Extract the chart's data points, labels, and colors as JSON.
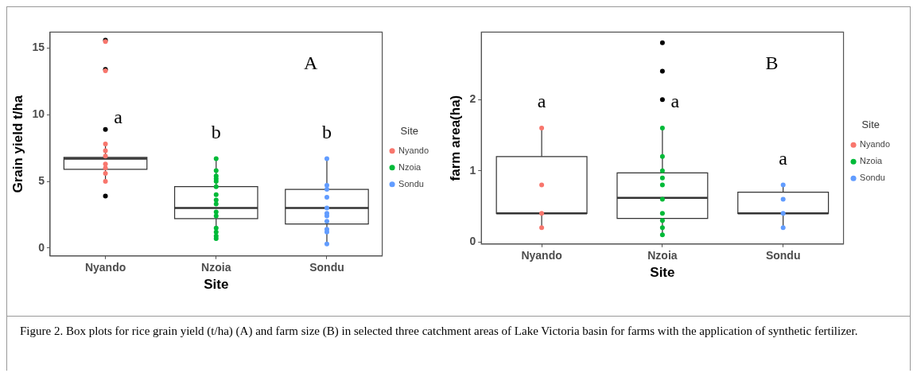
{
  "chart_data": [
    {
      "type": "box",
      "categories": [
        "Nyando",
        "Nzoia",
        "Sondu"
      ],
      "xlabel": "Site",
      "ylabel": "Grain yield t/ha",
      "legend_title": "Site",
      "legend": "right",
      "ylim": [
        -0.6,
        16.2
      ],
      "yticks": [
        0,
        5,
        10,
        15
      ],
      "boxes": [
        {
          "low": 5.0,
          "q1": 5.9,
          "median": 6.7,
          "q3": 6.8,
          "high": 7.8,
          "outliers": [
            15.6,
            13.4,
            8.9,
            3.9
          ]
        },
        {
          "low": 0.75,
          "q1": 2.2,
          "median": 3.0,
          "q3": 4.6,
          "high": 6.7
        },
        {
          "low": 0.25,
          "q1": 1.8,
          "median": 3.0,
          "q3": 4.4,
          "high": 6.7
        }
      ],
      "series": [
        {
          "name": "Nyando",
          "type": "scatter",
          "color": "#f8766d",
          "x": [
            "Nyando",
            "Nyando",
            "Nyando",
            "Nyando",
            "Nyando",
            "Nyando",
            "Nyando",
            "Nyando",
            "Nyando"
          ],
          "values": [
            15.5,
            13.3,
            7.8,
            7.3,
            6.9,
            6.3,
            6.0,
            5.6,
            5.0
          ]
        },
        {
          "name": "Nzoia",
          "type": "scatter",
          "color": "#00ba38",
          "x": [
            "Nzoia",
            "Nzoia",
            "Nzoia",
            "Nzoia",
            "Nzoia",
            "Nzoia",
            "Nzoia",
            "Nzoia",
            "Nzoia",
            "Nzoia",
            "Nzoia",
            "Nzoia",
            "Nzoia",
            "Nzoia",
            "Nzoia"
          ],
          "values": [
            6.7,
            5.8,
            5.4,
            5.2,
            5.0,
            4.6,
            4.0,
            3.6,
            3.3,
            2.7,
            2.4,
            1.5,
            1.2,
            0.9,
            0.7
          ]
        },
        {
          "name": "Sondu",
          "type": "scatter",
          "color": "#619cff",
          "x": [
            "Sondu",
            "Sondu",
            "Sondu",
            "Sondu",
            "Sondu",
            "Sondu",
            "Sondu",
            "Sondu",
            "Sondu",
            "Sondu",
            "Sondu"
          ],
          "values": [
            6.7,
            4.7,
            4.4,
            3.8,
            3.0,
            2.6,
            2.4,
            2.0,
            1.4,
            1.2,
            0.3
          ]
        }
      ],
      "annotations": [
        "A",
        "a",
        "b",
        "b",
        "Figure 2. Box plots for rice grain yield (t/ha) (A) and farm size (B) in selected three catchment areas of Lake Victoria basin for farms with the application of synthetic fertilizer."
      ]
    },
    {
      "type": "box",
      "categories": [
        "Nyando",
        "Nzoia",
        "Sondu"
      ],
      "xlabel": "Site",
      "ylabel": "farm area(ha)",
      "legend_title": "Site",
      "legend": "right",
      "ylim": [
        -0.03,
        2.95
      ],
      "yticks": [
        0,
        1,
        2
      ],
      "boxes": [
        {
          "low": 0.2,
          "q1": 0.4,
          "median": 0.4,
          "q3": 1.2,
          "high": 1.6
        },
        {
          "low": 0.1,
          "q1": 0.33,
          "median": 0.62,
          "q3": 0.97,
          "high": 1.6,
          "outliers": [
            2.8,
            2.4,
            2.0
          ]
        },
        {
          "low": 0.2,
          "q1": 0.4,
          "median": 0.4,
          "q3": 0.7,
          "high": 0.8
        }
      ],
      "series": [
        {
          "name": "Nyando",
          "type": "scatter",
          "color": "#f8766d",
          "x": [
            "Nyando",
            "Nyando",
            "Nyando",
            "Nyando"
          ],
          "values": [
            1.6,
            0.8,
            0.4,
            0.2
          ]
        },
        {
          "name": "Nzoia",
          "type": "scatter",
          "color": "#00ba38",
          "x": [
            "Nzoia",
            "Nzoia",
            "Nzoia",
            "Nzoia",
            "Nzoia",
            "Nzoia",
            "Nzoia",
            "Nzoia",
            "Nzoia",
            "Nzoia"
          ],
          "values": [
            1.6,
            1.2,
            1.0,
            0.9,
            0.8,
            0.6,
            0.4,
            0.3,
            0.2,
            0.1
          ]
        },
        {
          "name": "Sondu",
          "type": "scatter",
          "color": "#619cff",
          "x": [
            "Sondu",
            "Sondu",
            "Sondu",
            "Sondu"
          ],
          "values": [
            0.8,
            0.6,
            0.4,
            0.2
          ]
        }
      ],
      "annotations": [
        "B",
        "a",
        "a",
        "a"
      ]
    }
  ]
}
